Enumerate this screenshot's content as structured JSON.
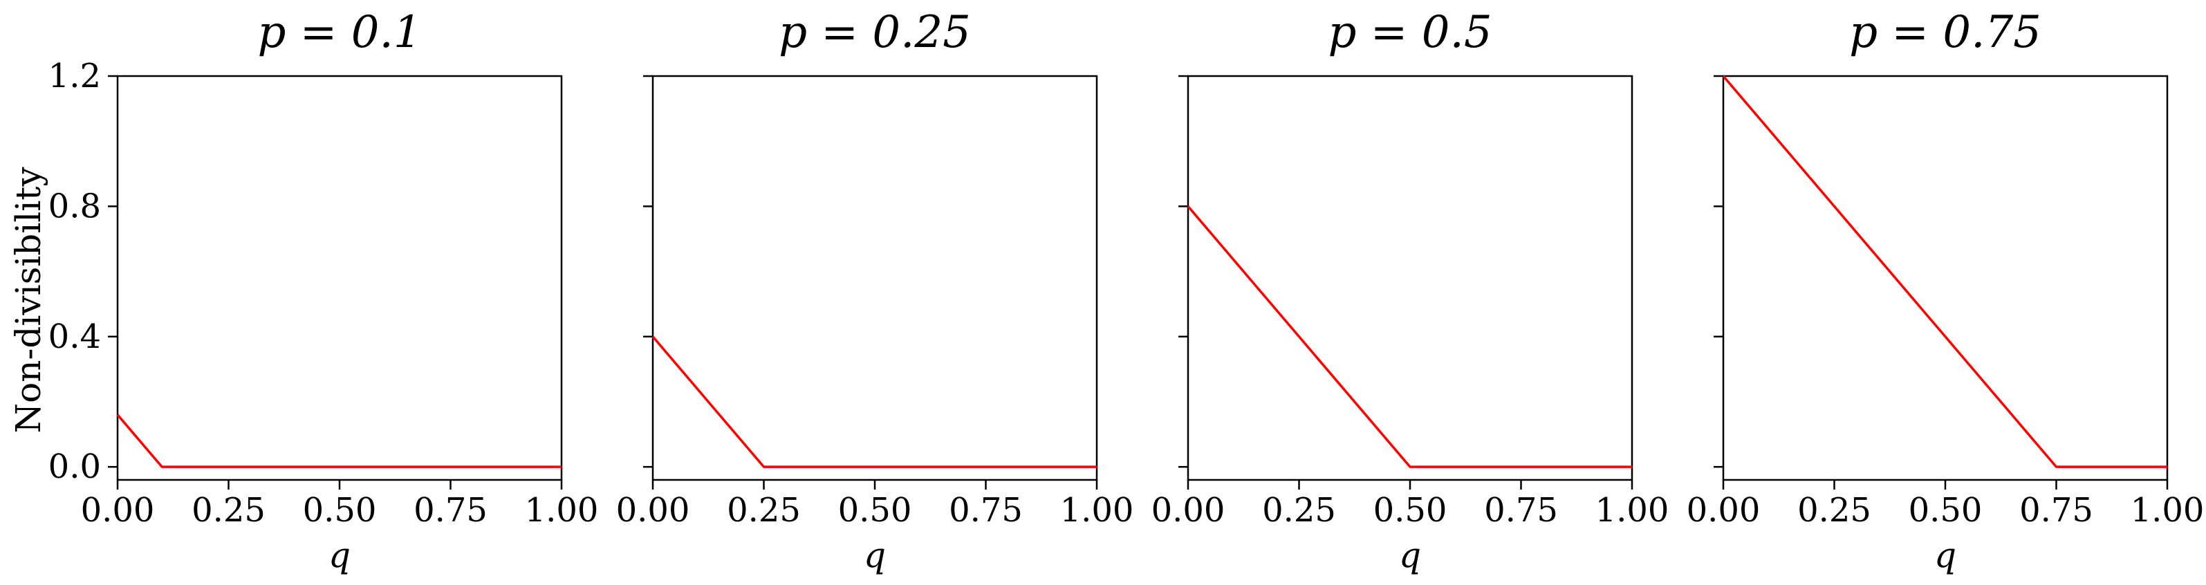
{
  "colors": {
    "line": "#ff0000",
    "axes": "#000000",
    "background": "#ffffff"
  },
  "ylabel": "Non-divisibility",
  "chart_data": [
    {
      "type": "line",
      "title": "p = 0.1",
      "xlabel": "q",
      "ylabel": "Non-divisibility",
      "xlim": [
        0.0,
        1.0
      ],
      "ylim": [
        -0.04,
        1.2
      ],
      "xticks": [
        "0.00",
        "0.25",
        "0.50",
        "0.75",
        "1.00"
      ],
      "yticks": [
        "0.0",
        "0.4",
        "0.8",
        "1.2"
      ],
      "grid": false,
      "series": [
        {
          "x": [
            0.0,
            0.1,
            1.0
          ],
          "y": [
            0.16,
            0.0,
            0.0
          ]
        }
      ]
    },
    {
      "type": "line",
      "title": "p = 0.25",
      "xlabel": "q",
      "xlim": [
        0.0,
        1.0
      ],
      "ylim": [
        -0.04,
        1.2
      ],
      "xticks": [
        "0.00",
        "0.25",
        "0.50",
        "0.75",
        "1.00"
      ],
      "grid": false,
      "series": [
        {
          "x": [
            0.0,
            0.25,
            1.0
          ],
          "y": [
            0.4,
            0.0,
            0.0
          ]
        }
      ]
    },
    {
      "type": "line",
      "title": "p = 0.5",
      "xlabel": "q",
      "xlim": [
        0.0,
        1.0
      ],
      "ylim": [
        -0.04,
        1.2
      ],
      "xticks": [
        "0.00",
        "0.25",
        "0.50",
        "0.75",
        "1.00"
      ],
      "grid": false,
      "series": [
        {
          "x": [
            0.0,
            0.5,
            1.0
          ],
          "y": [
            0.8,
            0.0,
            0.0
          ]
        }
      ]
    },
    {
      "type": "line",
      "title": "p = 0.75",
      "xlabel": "q",
      "xlim": [
        0.0,
        1.0
      ],
      "ylim": [
        -0.04,
        1.2
      ],
      "xticks": [
        "0.00",
        "0.25",
        "0.50",
        "0.75",
        "1.00"
      ],
      "grid": false,
      "series": [
        {
          "x": [
            0.0,
            0.75,
            1.0
          ],
          "y": [
            1.2,
            0.0,
            0.0
          ]
        }
      ]
    }
  ]
}
